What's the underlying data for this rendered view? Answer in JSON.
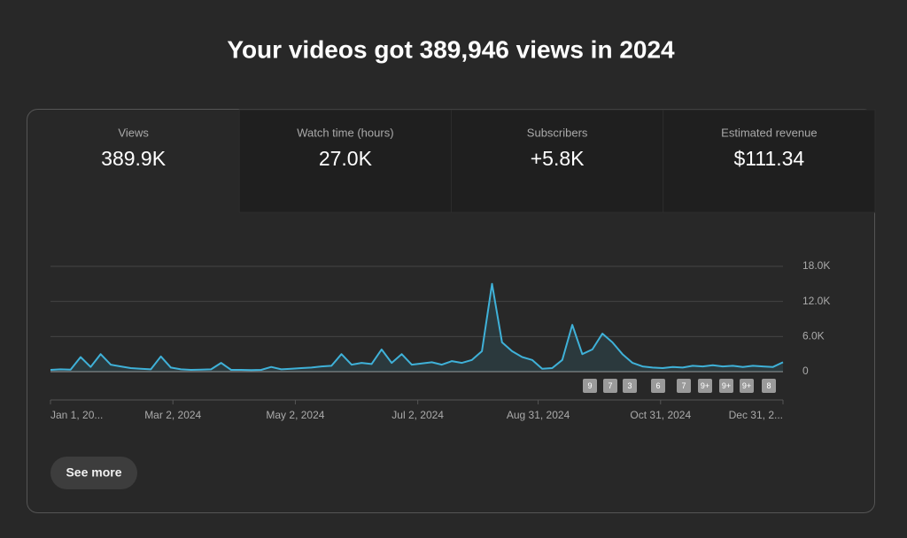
{
  "header": {
    "title": "Your videos got 389,946 views in 2024"
  },
  "tabs": [
    {
      "label": "Views",
      "value": "389.9K"
    },
    {
      "label": "Watch time (hours)",
      "value": "27.0K"
    },
    {
      "label": "Subscribers",
      "value": "+5.8K"
    },
    {
      "label": "Estimated revenue",
      "value": "$111.34"
    }
  ],
  "chart_data": {
    "type": "line",
    "x": [
      0,
      5,
      10,
      15,
      20,
      25,
      30,
      35,
      40,
      45,
      50,
      55,
      60,
      65,
      70,
      75,
      80,
      85,
      90,
      95,
      100,
      105,
      110,
      115,
      120,
      125,
      130,
      135,
      140,
      145,
      150,
      155,
      160,
      165,
      170,
      175,
      180,
      185,
      190,
      195,
      200,
      205,
      210,
      215,
      220,
      225,
      230,
      235,
      240,
      245,
      250,
      255,
      260,
      265,
      270,
      275,
      280,
      285,
      290,
      295,
      300,
      305,
      310,
      315,
      320,
      325,
      330,
      335,
      340,
      345,
      350,
      355,
      360,
      365
    ],
    "series": [
      {
        "color": "#3fb1d8",
        "values": [
          300,
          400,
          350,
          2500,
          800,
          3000,
          1200,
          900,
          600,
          500,
          400,
          2600,
          700,
          400,
          300,
          350,
          400,
          1500,
          300,
          300,
          250,
          300,
          800,
          400,
          500,
          600,
          700,
          900,
          1000,
          3000,
          1200,
          1500,
          1300,
          3800,
          1500,
          3000,
          1200,
          1400,
          1600,
          1200,
          1800,
          1500,
          2000,
          3500,
          15000,
          5000,
          3500,
          2500,
          2000,
          500,
          600,
          2000,
          8000,
          3000,
          3800,
          6500,
          5000,
          3000,
          1500,
          900,
          700,
          600,
          800,
          700,
          1000,
          900,
          1100,
          900,
          1000,
          800,
          1000,
          900,
          800,
          1600
        ]
      }
    ],
    "xlim": [
      0,
      365
    ],
    "xticks": [
      {
        "value": 0,
        "label": "Jan 1, 20..."
      },
      {
        "value": 61,
        "label": "Mar 2, 2024"
      },
      {
        "value": 122,
        "label": "May 2, 2024"
      },
      {
        "value": 183,
        "label": "Jul 2, 2024"
      },
      {
        "value": 243,
        "label": "Aug 31, 2024"
      },
      {
        "value": 304,
        "label": "Oct 31, 2024"
      },
      {
        "value": 365,
        "label": "Dec 31, 2..."
      }
    ],
    "ylim": [
      0,
      18000
    ],
    "yticks": [
      0,
      {
        "value": 6000,
        "label": "6.0K"
      },
      {
        "value": 12000,
        "label": "12.0K"
      },
      {
        "value": 18000,
        "label": "18.0K"
      }
    ],
    "grid": true,
    "markers": [
      "9",
      "7",
      "3",
      "6",
      "7",
      "9+",
      "9+",
      "9+",
      "8"
    ]
  },
  "button": {
    "label": "See more"
  }
}
